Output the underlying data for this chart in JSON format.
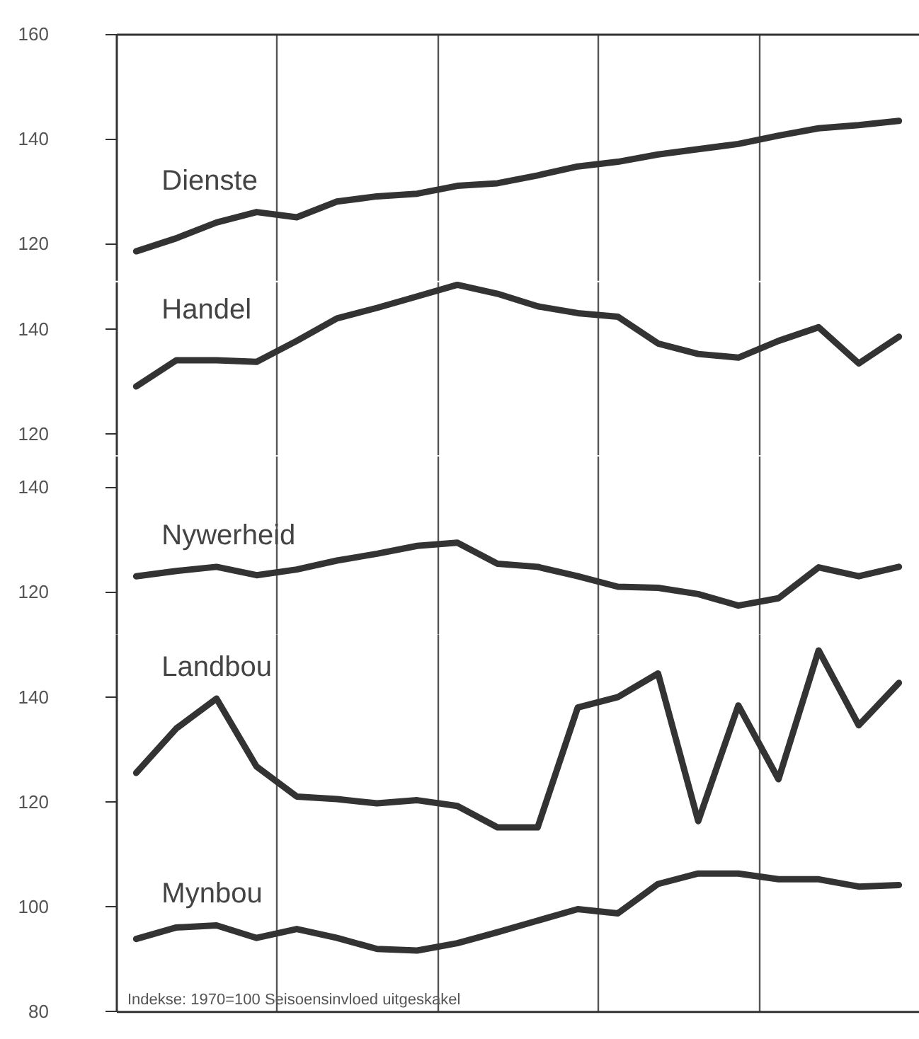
{
  "chart_data": [
    {
      "type": "line",
      "categories": [
        null,
        null,
        null,
        null,
        null,
        null,
        null,
        null,
        null,
        null,
        null,
        null,
        null,
        null,
        null,
        null,
        null,
        null,
        null,
        null
      ],
      "ylim": [
        113,
        160
      ],
      "yticks": [
        120,
        140,
        160
      ],
      "grid": "x",
      "tick_labels": "y",
      "series": [
        {
          "name": "Dienste",
          "color": "#333333",
          "values": [
            118.5,
            121,
            124,
            126,
            125,
            128,
            129,
            129.5,
            131,
            131.5,
            133,
            134.7,
            135.6,
            137,
            138,
            139,
            140.6,
            142,
            142.6,
            143.4
          ]
        }
      ]
    },
    {
      "type": "line",
      "categories": [
        null,
        null,
        null,
        null,
        null,
        null,
        null,
        null,
        null,
        null,
        null,
        null,
        null,
        null,
        null,
        null,
        null,
        null,
        null,
        null
      ],
      "ylim": [
        116,
        149
      ],
      "yticks": [
        120,
        140
      ],
      "grid": "x",
      "tick_labels": "y",
      "series": [
        {
          "name": "Handel",
          "color": "#333333",
          "values": [
            129,
            134,
            134,
            133.7,
            137.7,
            142,
            144,
            146.2,
            148.4,
            146.7,
            144.3,
            143,
            142.3,
            137.2,
            135.2,
            134.5,
            137.7,
            140.3,
            133.4,
            138.5
          ]
        }
      ]
    },
    {
      "type": "line",
      "categories": [
        null,
        null,
        null,
        null,
        null,
        null,
        null,
        null,
        null,
        null,
        null,
        null,
        null,
        null,
        null,
        null,
        null,
        null,
        null,
        null
      ],
      "ylim": [
        112,
        146
      ],
      "yticks": [
        120,
        140
      ],
      "grid": "x",
      "tick_labels": "y",
      "series": [
        {
          "name": "Nywerheid",
          "color": "#333333",
          "values": [
            123,
            124,
            124.8,
            123.2,
            124.3,
            126,
            127.3,
            128.8,
            129.4,
            125.4,
            124.8,
            123,
            121,
            120.8,
            119.6,
            117.4,
            118.8,
            124.7,
            123,
            124.8
          ]
        }
      ]
    },
    {
      "type": "line",
      "categories": [
        null,
        null,
        null,
        null,
        null,
        null,
        null,
        null,
        null,
        null,
        null,
        null,
        null,
        null,
        null,
        null,
        null,
        null,
        null,
        null
      ],
      "ylim": [
        80,
        152
      ],
      "yticks": [
        80,
        100,
        120,
        140
      ],
      "grid": "x",
      "tick_labels": "y",
      "annotations": [
        "Indekse: 1970=100  Seisoensinvloed uitgeskakel"
      ],
      "series": [
        {
          "name": "Landbou",
          "color": "#333333",
          "values": [
            125.5,
            134,
            139.7,
            126.7,
            121,
            120.5,
            119.7,
            120.3,
            119.2,
            115.1,
            115.1,
            138,
            140,
            144.5,
            116.3,
            138.4,
            124.3,
            148.9,
            134.6,
            142.7
          ]
        },
        {
          "name": "Mynbou",
          "color": "#333333",
          "values": [
            93.8,
            96,
            96.4,
            94,
            95.7,
            94,
            91.9,
            91.6,
            93,
            95.1,
            97.3,
            99.5,
            98.7,
            104.3,
            106.3,
            106.3,
            105.2,
            105.2,
            103.8,
            104.1
          ]
        }
      ]
    }
  ]
}
